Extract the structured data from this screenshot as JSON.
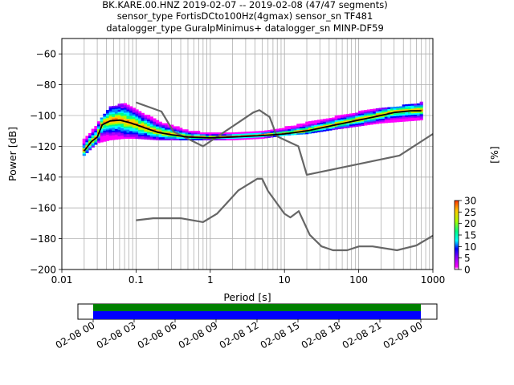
{
  "title_lines": [
    "BK.KARE.00.HNZ   2019-02-07 -- 2019-02-08  (47/47 segments)",
    "sensor_type FortisDCto100Hz(4gmax) sensor_sn TF481",
    "datalogger_type GuralpMinimus+ datalogger_sn MINP-DF59"
  ],
  "chart_data": [
    {
      "type": "heatmap",
      "xlabel": "Period [s]",
      "ylabel": "Power [dB]",
      "x_scale": "log",
      "xlim": [
        0.01,
        1000
      ],
      "ylim": [
        -200,
        -50
      ],
      "x_ticks": [
        {
          "value": 0.01,
          "label": "0.01"
        },
        {
          "value": 0.1,
          "label": "0.1"
        },
        {
          "value": 1,
          "label": "1"
        },
        {
          "value": 10,
          "label": "10"
        },
        {
          "value": 100,
          "label": "100"
        },
        {
          "value": 1000,
          "label": "1000"
        }
      ],
      "y_ticks": [
        {
          "value": -60,
          "label": "−60"
        },
        {
          "value": -80,
          "label": "−80"
        },
        {
          "value": -100,
          "label": "−100"
        },
        {
          "value": -120,
          "label": "−120"
        },
        {
          "value": -140,
          "label": "−140"
        },
        {
          "value": -160,
          "label": "−160"
        },
        {
          "value": -180,
          "label": "−180"
        },
        {
          "value": -200,
          "label": "−200"
        }
      ],
      "grid": true,
      "colorbar": {
        "label": "[%]",
        "range": [
          0,
          30
        ],
        "ticks": [
          {
            "value": 0,
            "label": "0"
          },
          {
            "value": 5,
            "label": "5"
          },
          {
            "value": 10,
            "label": "10"
          },
          {
            "value": 15,
            "label": "15"
          },
          {
            "value": 20,
            "label": "20"
          },
          {
            "value": 25,
            "label": "25"
          },
          {
            "value": 30,
            "label": "30"
          }
        ]
      },
      "colors": {
        "noise_models": "#666666",
        "mean_curve": "#000000",
        "palette": [
          "#ffffff",
          "#ff00ff",
          "#8800ff",
          "#0000ff",
          "#00ffff",
          "#00ff88",
          "#aaff00",
          "#ffcc00",
          "#ff3300"
        ]
      },
      "high_noise_model": {
        "x": [
          0.1,
          0.22,
          0.32,
          0.8,
          3.8,
          4.6,
          6.3,
          7.9,
          15.4,
          20,
          354.8,
          1000
        ],
        "y": [
          -91.5,
          -97.4,
          -110.5,
          -120,
          -98,
          -96.5,
          -101,
          -113.5,
          -120,
          -138.5,
          -126,
          -112
        ]
      },
      "low_noise_model": {
        "x": [
          0.1,
          0.17,
          0.4,
          0.8,
          1.24,
          2.4,
          4.3,
          5,
          6,
          10,
          12,
          15.6,
          21.9,
          31.6,
          45,
          70,
          101,
          154,
          328,
          600,
          1000
        ],
        "y": [
          -168,
          -166.7,
          -166.7,
          -169.2,
          -163.7,
          -148.6,
          -141.1,
          -141.1,
          -149,
          -163.8,
          -166.2,
          -162.1,
          -177.5,
          -185,
          -187.5,
          -187.5,
          -185,
          -185,
          -187.5,
          -184.4,
          -178
        ]
      },
      "mean_curve": {
        "x": [
          0.02,
          0.025,
          0.03,
          0.035,
          0.045,
          0.06,
          0.08,
          0.1,
          0.15,
          0.2,
          0.3,
          0.5,
          1,
          2,
          5,
          10,
          20,
          50,
          100,
          200,
          300,
          500,
          700
        ],
        "y": [
          -123,
          -117,
          -114,
          -106,
          -103.5,
          -103,
          -104.5,
          -106,
          -109,
          -111,
          -112.5,
          -114,
          -114.5,
          -114,
          -113,
          -112,
          -110,
          -106,
          -103,
          -100,
          -98,
          -97,
          -97
        ]
      },
      "psd_spread": [
        {
          "x": [
            0.02,
            0.03,
            0.045,
            0.07,
            0.1,
            0.2,
            0.5,
            1,
            2,
            5,
            10,
            20,
            50,
            100,
            200,
            700
          ],
          "lower": [
            -126,
            -118,
            -116,
            -115,
            -115,
            -116,
            -116,
            -116,
            -116,
            -115,
            -113,
            -112,
            -109,
            -107,
            -105,
            -103
          ]
        },
        {
          "x": [
            0.02,
            0.03,
            0.045,
            0.07,
            0.1,
            0.2,
            0.5,
            1,
            2,
            5,
            10,
            20,
            50,
            100,
            200,
            700
          ],
          "upper": [
            -116,
            -106,
            -95,
            -92,
            -96,
            -104,
            -110,
            -112,
            -112,
            -111,
            -108,
            -105,
            -101,
            -98,
            -96,
            -92
          ]
        }
      ]
    },
    {
      "type": "timeline",
      "x_ticks": [
        "02-08 00",
        "02-08 03",
        "02-08 06",
        "02-08 09",
        "02-08 12",
        "02-08 15",
        "02-08 18",
        "02-08 21",
        "02-09 00"
      ],
      "rows": [
        {
          "color": "#008000"
        },
        {
          "color": "#0000ff"
        }
      ]
    }
  ]
}
